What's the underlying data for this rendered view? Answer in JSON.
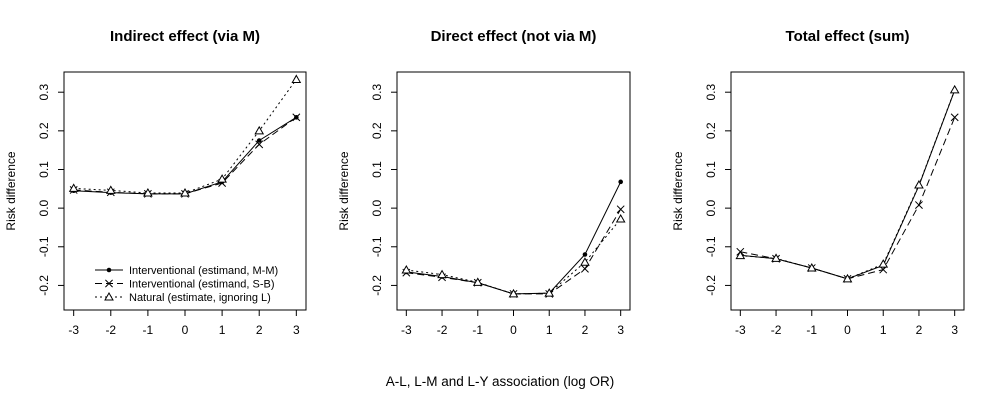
{
  "figure": {
    "xlabel": "A-L, L-M and L-Y association (log OR)"
  },
  "chart_data": [
    {
      "type": "line",
      "title": "Indirect effect (via M)",
      "xlabel": "",
      "ylabel": "Risk difference",
      "x": [
        -3,
        -2,
        -1,
        0,
        1,
        2,
        3
      ],
      "xticks": [
        "-3",
        "-2",
        "-1",
        "0",
        "1",
        "2",
        "3"
      ],
      "yticks": [
        "-0.2",
        "-0.1",
        "0.0",
        "0.1",
        "0.2",
        "0.3"
      ],
      "xlim": [
        -3,
        3
      ],
      "ylim": [
        -0.2,
        0.33
      ],
      "grid": false,
      "legend": "bottom-right",
      "series": [
        {
          "name": "Interventional (estimand, M-M)",
          "style": "solid",
          "marker": "dot",
          "values": [
            0.045,
            0.04,
            0.037,
            0.037,
            0.068,
            0.175,
            0.235
          ]
        },
        {
          "name": "Interventional (estimand, S-B)",
          "style": "dashed",
          "marker": "x",
          "values": [
            0.047,
            0.041,
            0.037,
            0.037,
            0.065,
            0.165,
            0.235
          ]
        },
        {
          "name": "Natural (estimate, ignoring L)",
          "style": "dotted",
          "marker": "triangle",
          "values": [
            0.051,
            0.046,
            0.039,
            0.039,
            0.075,
            0.2,
            0.333
          ]
        }
      ]
    },
    {
      "type": "line",
      "title": "Direct effect (not via M)",
      "xlabel": "",
      "ylabel": "Risk difference",
      "x": [
        -3,
        -2,
        -1,
        0,
        1,
        2,
        3
      ],
      "xticks": [
        "-3",
        "-2",
        "-1",
        "0",
        "1",
        "2",
        "3"
      ],
      "yticks": [
        "-0.2",
        "-0.1",
        "0.0",
        "0.1",
        "0.2",
        "0.3"
      ],
      "xlim": [
        -3,
        3
      ],
      "ylim": [
        -0.2,
        0.33
      ],
      "grid": false,
      "legend": "none",
      "series": [
        {
          "style": "solid",
          "marker": "dot",
          "values": [
            -0.165,
            -0.177,
            -0.193,
            -0.222,
            -0.22,
            -0.12,
            0.068
          ]
        },
        {
          "style": "dashed",
          "marker": "x",
          "values": [
            -0.167,
            -0.179,
            -0.193,
            -0.222,
            -0.222,
            -0.157,
            -0.003
          ]
        },
        {
          "style": "dotted",
          "marker": "triangle",
          "values": [
            -0.16,
            -0.172,
            -0.192,
            -0.222,
            -0.22,
            -0.14,
            -0.028
          ]
        }
      ]
    },
    {
      "type": "line",
      "title": "Total effect (sum)",
      "xlabel": "",
      "ylabel": "Risk difference",
      "x": [
        -3,
        -2,
        -1,
        0,
        1,
        2,
        3
      ],
      "xticks": [
        "-3",
        "-2",
        "-1",
        "0",
        "1",
        "2",
        "3"
      ],
      "yticks": [
        "-0.2",
        "-0.1",
        "0.0",
        "0.1",
        "0.2",
        "0.3"
      ],
      "xlim": [
        -3,
        3
      ],
      "ylim": [
        -0.2,
        0.33
      ],
      "grid": false,
      "legend": "none",
      "series": [
        {
          "style": "solid",
          "marker": "dot",
          "values": [
            -0.122,
            -0.131,
            -0.155,
            -0.183,
            -0.148,
            0.058,
            0.305
          ]
        },
        {
          "style": "dashed",
          "marker": "x",
          "values": [
            -0.113,
            -0.131,
            -0.155,
            -0.183,
            -0.159,
            0.008,
            0.235
          ]
        },
        {
          "style": "dotted",
          "marker": "triangle",
          "values": [
            -0.123,
            -0.13,
            -0.155,
            -0.183,
            -0.145,
            0.06,
            0.306
          ]
        }
      ]
    }
  ]
}
